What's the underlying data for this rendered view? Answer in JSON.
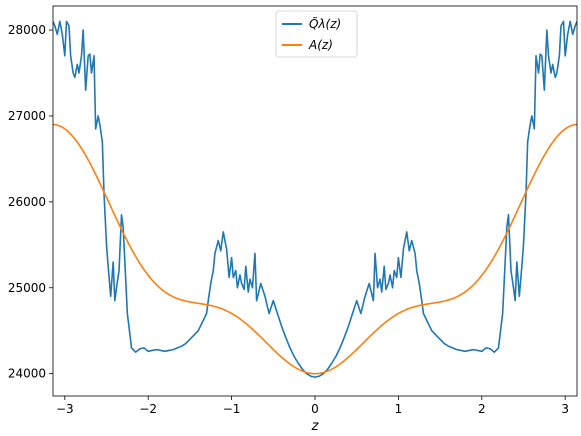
{
  "chart_data": {
    "type": "line",
    "xlabel": "z",
    "ylabel": "",
    "xlim": [
      -3.14159,
      3.14159
    ],
    "ylim": [
      23740,
      28280
    ],
    "xticks": [
      "−3",
      "−2",
      "−1",
      "0",
      "1",
      "2",
      "3"
    ],
    "xtick_values": [
      -3,
      -2,
      -1,
      0,
      1,
      2,
      3
    ],
    "yticks": [
      "24000",
      "25000",
      "26000",
      "27000",
      "28000"
    ],
    "ytick_values": [
      24000,
      25000,
      26000,
      27000,
      28000
    ],
    "legend_position": "top-center",
    "series": [
      {
        "name": "Q̃λ(z)",
        "color": "#1f77b4",
        "x": [
          0,
          0.05,
          0.1,
          0.15,
          0.2,
          0.25,
          0.3,
          0.35,
          0.4,
          0.45,
          0.5,
          0.55,
          0.6,
          0.65,
          0.7,
          0.72,
          0.75,
          0.78,
          0.8,
          0.83,
          0.85,
          0.88,
          0.9,
          0.93,
          0.95,
          0.98,
          1.0,
          1.03,
          1.06,
          1.1,
          1.13,
          1.16,
          1.2,
          1.22,
          1.25,
          1.28,
          1.3,
          1.35,
          1.4,
          1.45,
          1.5,
          1.55,
          1.6,
          1.65,
          1.7,
          1.75,
          1.8,
          1.85,
          1.9,
          1.95,
          2.0,
          2.05,
          2.1,
          2.15,
          2.2,
          2.25,
          2.3,
          2.32,
          2.35,
          2.38,
          2.4,
          2.42,
          2.45,
          2.48,
          2.5,
          2.53,
          2.55,
          2.58,
          2.6,
          2.63,
          2.65,
          2.68,
          2.7,
          2.72,
          2.75,
          2.78,
          2.8,
          2.83,
          2.85,
          2.88,
          2.9,
          2.93,
          2.95,
          2.98,
          3.0,
          3.03,
          3.06,
          3.09,
          3.12,
          3.14159
        ],
        "y": [
          23960,
          23970,
          24000,
          24050,
          24120,
          24200,
          24300,
          24420,
          24550,
          24700,
          24850,
          24700,
          24900,
          25050,
          24850,
          25400,
          25000,
          25100,
          24950,
          25250,
          24980,
          25050,
          25150,
          25000,
          25200,
          25120,
          25350,
          25120,
          25450,
          25650,
          25430,
          25550,
          25400,
          25200,
          25050,
          24850,
          24700,
          24600,
          24500,
          24450,
          24400,
          24350,
          24320,
          24300,
          24280,
          24270,
          24260,
          24270,
          24280,
          24270,
          24260,
          24300,
          24290,
          24250,
          24300,
          24700,
          25700,
          25850,
          25200,
          25000,
          24850,
          25300,
          24900,
          25250,
          25500,
          26100,
          26700,
          26900,
          27000,
          26850,
          27700,
          27500,
          27720,
          27700,
          27300,
          28000,
          27700,
          27500,
          27600,
          27450,
          27500,
          27700,
          28050,
          28100,
          27700,
          27950,
          28100,
          27950,
          28050,
          28100
        ]
      },
      {
        "name": "A(z)",
        "color": "#ff7f0e",
        "formula": "25150 - 1150*cos(z) + 300*cos(2z) - 300*cos(3z)"
      }
    ]
  }
}
